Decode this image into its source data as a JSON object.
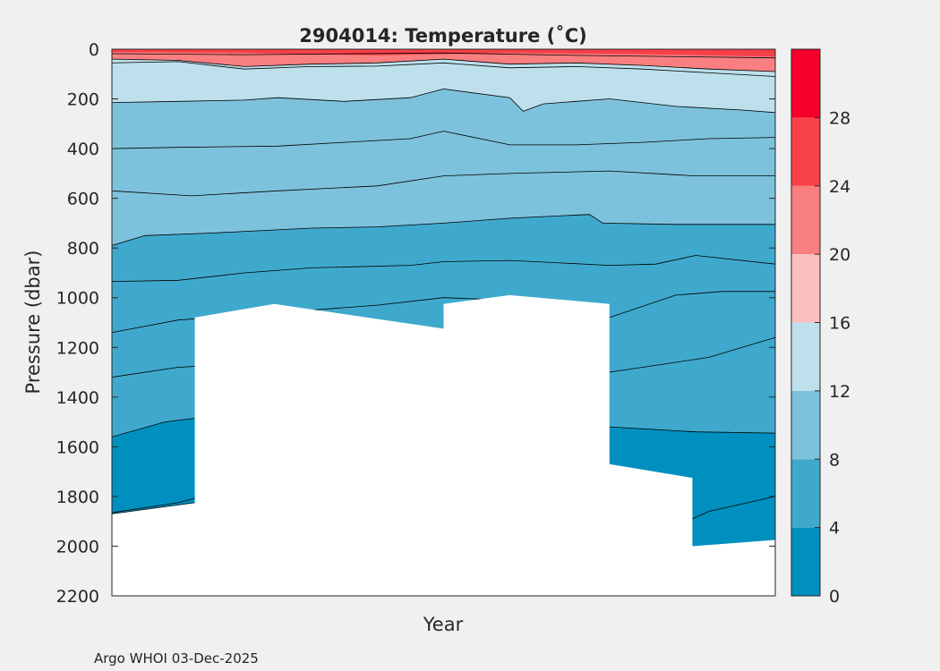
{
  "chart_data": {
    "type": "contour",
    "title": "2904014:  Temperature (˚C)",
    "xlabel": "Year",
    "ylabel": "Pressure (dbar)",
    "ylim": [
      0,
      2200
    ],
    "y_reversed": true,
    "yticks": [
      0,
      200,
      400,
      600,
      800,
      1000,
      1200,
      1400,
      1600,
      1800,
      2000,
      2200
    ],
    "xticks": [],
    "colorbar": {
      "range": [
        0,
        32
      ],
      "ticks": [
        0,
        4,
        8,
        12,
        16,
        20,
        24,
        28
      ],
      "levels": [
        {
          "from": 0,
          "to": 4,
          "color": "#0090bf"
        },
        {
          "from": 4,
          "to": 8,
          "color": "#3fa9cd"
        },
        {
          "from": 8,
          "to": 12,
          "color": "#7dc2dc"
        },
        {
          "from": 12,
          "to": 16,
          "color": "#bde0ec"
        },
        {
          "from": 16,
          "to": 20,
          "color": "#fcbfbf"
        },
        {
          "from": 20,
          "to": 24,
          "color": "#fa7f80"
        },
        {
          "from": 24,
          "to": 28,
          "color": "#f84049"
        },
        {
          "from": 28,
          "to": 32,
          "color": "#f6002b"
        }
      ]
    },
    "x_domain": [
      0,
      1
    ],
    "isotherms": [
      {
        "level": 16,
        "depth_pts": [
          [
            0,
            40
          ],
          [
            0.1,
            45
          ],
          [
            0.2,
            70
          ],
          [
            0.3,
            60
          ],
          [
            0.4,
            55
          ],
          [
            0.5,
            40
          ],
          [
            0.6,
            60
          ],
          [
            0.7,
            55
          ],
          [
            0.8,
            65
          ],
          [
            0.9,
            80
          ],
          [
            1,
            90
          ]
        ]
      },
      {
        "level": 14,
        "depth_pts": [
          [
            0,
            55
          ],
          [
            0.1,
            50
          ],
          [
            0.2,
            80
          ],
          [
            0.3,
            70
          ],
          [
            0.4,
            68
          ],
          [
            0.5,
            55
          ],
          [
            0.6,
            75
          ],
          [
            0.7,
            70
          ],
          [
            0.8,
            80
          ],
          [
            0.9,
            95
          ],
          [
            1,
            110
          ]
        ]
      },
      {
        "level": 12,
        "depth_pts": [
          [
            0,
            215
          ],
          [
            0.1,
            210
          ],
          [
            0.2,
            205
          ],
          [
            0.25,
            195
          ],
          [
            0.35,
            210
          ],
          [
            0.45,
            195
          ],
          [
            0.5,
            160
          ],
          [
            0.6,
            195
          ],
          [
            0.62,
            250
          ],
          [
            0.65,
            220
          ],
          [
            0.75,
            200
          ],
          [
            0.85,
            230
          ],
          [
            0.95,
            245
          ],
          [
            1,
            255
          ]
        ]
      },
      {
        "level": 10,
        "depth_pts": [
          [
            0,
            400
          ],
          [
            0.1,
            395
          ],
          [
            0.25,
            390
          ],
          [
            0.35,
            375
          ],
          [
            0.45,
            360
          ],
          [
            0.5,
            330
          ],
          [
            0.6,
            385
          ],
          [
            0.7,
            385
          ],
          [
            0.8,
            375
          ],
          [
            0.9,
            360
          ],
          [
            1,
            355
          ]
        ]
      },
      {
        "level": 9,
        "depth_pts": [
          [
            0,
            570
          ],
          [
            0.12,
            590
          ],
          [
            0.25,
            570
          ],
          [
            0.4,
            550
          ],
          [
            0.5,
            510
          ],
          [
            0.6,
            500
          ],
          [
            0.75,
            490
          ],
          [
            0.88,
            510
          ],
          [
            1,
            510
          ]
        ]
      },
      {
        "level": 8,
        "depth_pts": [
          [
            0,
            790
          ],
          [
            0.05,
            750
          ],
          [
            0.15,
            740
          ],
          [
            0.3,
            720
          ],
          [
            0.4,
            715
          ],
          [
            0.5,
            700
          ],
          [
            0.6,
            680
          ],
          [
            0.72,
            665
          ],
          [
            0.74,
            700
          ],
          [
            0.85,
            705
          ],
          [
            1,
            705
          ]
        ]
      },
      {
        "level": 7,
        "depth_pts": [
          [
            0,
            935
          ],
          [
            0.1,
            930
          ],
          [
            0.2,
            900
          ],
          [
            0.3,
            880
          ],
          [
            0.45,
            870
          ],
          [
            0.5,
            855
          ],
          [
            0.6,
            850
          ],
          [
            0.75,
            870
          ],
          [
            0.82,
            865
          ],
          [
            0.88,
            830
          ],
          [
            1,
            865
          ]
        ]
      },
      {
        "level": 6,
        "depth_pts": [
          [
            0,
            1140
          ],
          [
            0.1,
            1090
          ],
          [
            0.25,
            1060
          ],
          [
            0.4,
            1030
          ],
          [
            0.5,
            1000
          ],
          [
            0.6,
            1010
          ],
          [
            0.75,
            1080
          ],
          [
            0.85,
            990
          ],
          [
            0.92,
            975
          ],
          [
            1,
            975
          ]
        ]
      },
      {
        "level": 5,
        "depth_pts": [
          [
            0,
            1320
          ],
          [
            0.1,
            1280
          ],
          [
            0.25,
            1260
          ],
          [
            0.55,
            1310
          ],
          [
            0.75,
            1300
          ],
          [
            0.8,
            1280
          ],
          [
            0.9,
            1240
          ],
          [
            1,
            1160
          ]
        ]
      },
      {
        "level": 4,
        "depth_pts": [
          [
            0,
            1560
          ],
          [
            0.08,
            1500
          ],
          [
            0.2,
            1460
          ],
          [
            0.55,
            1480
          ],
          [
            0.75,
            1520
          ],
          [
            0.88,
            1540
          ],
          [
            1,
            1545
          ]
        ]
      },
      {
        "level": 3,
        "depth_pts": [
          [
            0,
            1865
          ],
          [
            0.1,
            1825
          ],
          [
            0.15,
            1790
          ],
          [
            0.3,
            1780
          ],
          [
            0.85,
            1920
          ],
          [
            0.9,
            1860
          ],
          [
            1,
            1800
          ]
        ]
      }
    ],
    "max_depth_profile": [
      [
        0,
        1870
      ],
      [
        0.125,
        1825
      ],
      [
        0.125,
        1080
      ],
      [
        0.245,
        1025
      ],
      [
        0.5,
        1125
      ],
      [
        0.5,
        1025
      ],
      [
        0.6,
        990
      ],
      [
        0.75,
        1025
      ],
      [
        0.75,
        1670
      ],
      [
        0.875,
        1725
      ],
      [
        0.875,
        2000
      ],
      [
        1,
        1975
      ]
    ]
  },
  "footer": {
    "credit": "Argo WHOI 03-Dec-2025"
  },
  "colors": {
    "figure_bg": "#f0f0f0",
    "axes_bg": "#ffffff",
    "text": "#262626"
  }
}
